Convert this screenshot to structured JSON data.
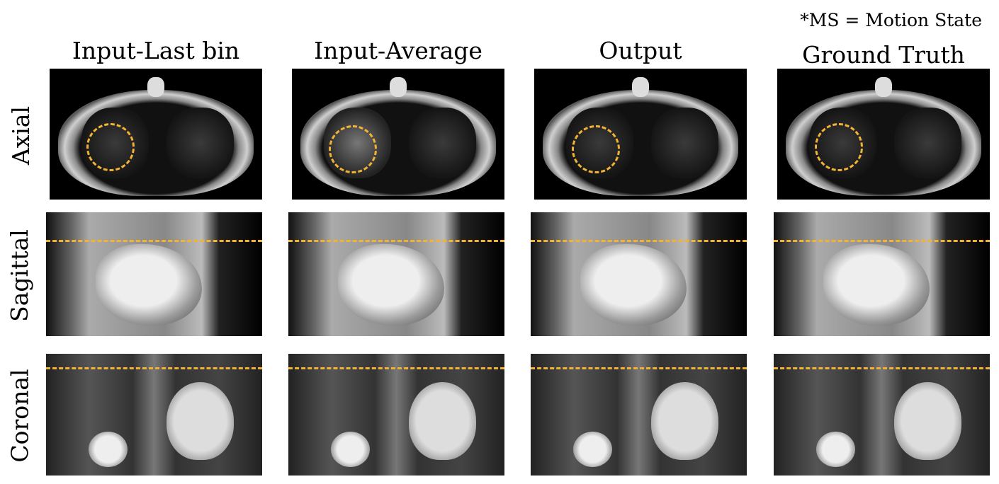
{
  "note": "*MS = Motion State",
  "columns": [
    "Input-Last bin",
    "Input-Average",
    "Output",
    "Ground Truth"
  ],
  "rows": [
    "Axial",
    "Sagittal",
    "Coronal"
  ],
  "colors": {
    "annotation": "#f2b233",
    "background": "#000000"
  }
}
